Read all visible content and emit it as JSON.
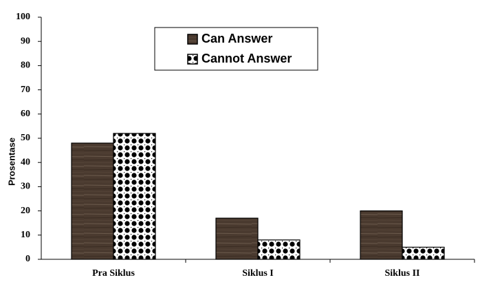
{
  "chart_data": {
    "type": "bar",
    "categories": [
      "Pra Siklus",
      "Siklus I",
      "Siklus II"
    ],
    "series": [
      {
        "name": "Can Answer",
        "color": "#4a3a2f",
        "values": [
          48,
          17,
          20
        ]
      },
      {
        "name": "Cannot Answer",
        "color": "#000000",
        "values": [
          52,
          8,
          5
        ]
      }
    ],
    "y_label": "Prosentase",
    "ylim": [
      0,
      100
    ],
    "yticks": [
      0,
      10,
      20,
      30,
      40,
      50,
      60,
      70,
      80,
      90,
      100
    ],
    "grid": false,
    "legend": "top"
  }
}
